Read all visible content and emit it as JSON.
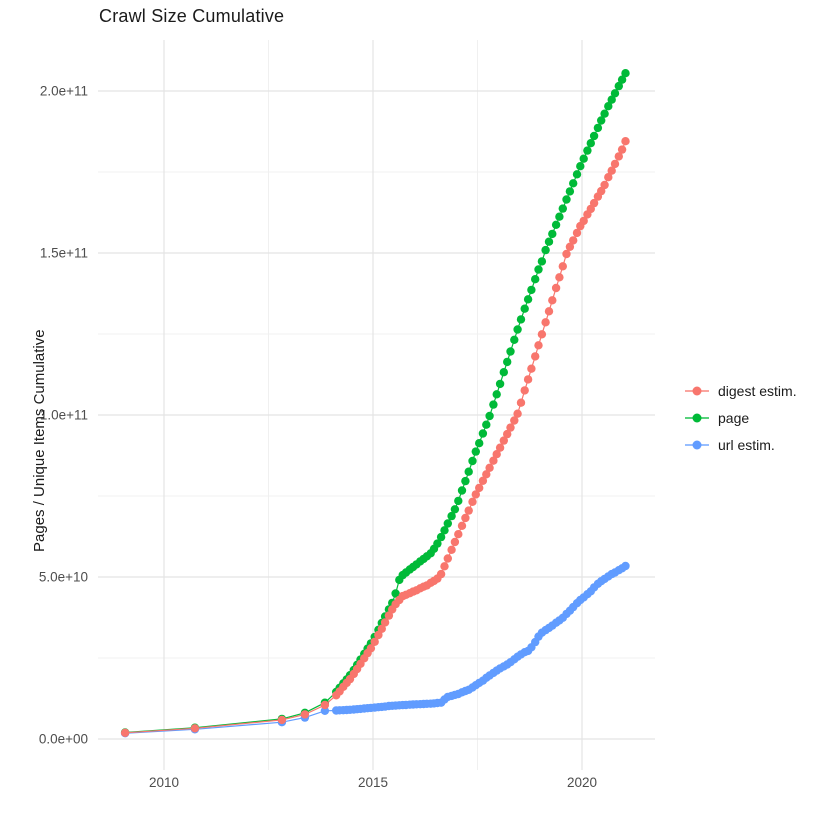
{
  "title": "Crawl Size Cumulative",
  "y_axis": {
    "label": "Pages / Unique Items Cumulative"
  },
  "legend": [
    {
      "label": "digest estim.",
      "color": "#F8766D"
    },
    {
      "label": "page",
      "color": "#00BA38"
    },
    {
      "label": "url estim.",
      "color": "#619CFF"
    }
  ],
  "chart_data": {
    "type": "scatter",
    "title": "Crawl Size Cumulative",
    "xlabel": "",
    "ylabel": "Pages / Unique Items Cumulative",
    "grid": true,
    "legend_position": "right",
    "xlim": [
      2008.4,
      2021.9
    ],
    "ylim_1e9": [
      -7,
      216
    ],
    "x_ticks": [
      2010,
      2015,
      2020
    ],
    "x_tick_labels": [
      "2010",
      "2015",
      "2020"
    ],
    "x_minor_ticks": [
      2012.5,
      2017.5
    ],
    "y_ticks_1e9": [
      0,
      50,
      100,
      150,
      200
    ],
    "y_tick_labels": [
      "0.0e+00",
      "5.0e+10",
      "1.0e+11",
      "1.5e+11",
      "2.0e+11"
    ],
    "y_minor_ticks_1e9": [
      25,
      75,
      125,
      175
    ],
    "units_note": "values_1e9 are item counts in billions (1e9)",
    "x": [
      2009.07,
      2010.74,
      2012.82,
      2013.37,
      2013.85,
      2014.12,
      2014.2,
      2014.29,
      2014.37,
      2014.45,
      2014.54,
      2014.62,
      2014.7,
      2014.79,
      2014.87,
      2014.95,
      2015.04,
      2015.13,
      2015.21,
      2015.29,
      2015.38,
      2015.46,
      2015.54,
      2015.63,
      2015.71,
      2015.79,
      2015.88,
      2015.96,
      2016.04,
      2016.13,
      2016.21,
      2016.29,
      2016.38,
      2016.46,
      2016.54,
      2016.63,
      2016.71,
      2016.79,
      2016.88,
      2016.96,
      2017.04,
      2017.13,
      2017.21,
      2017.29,
      2017.38,
      2017.46,
      2017.54,
      2017.63,
      2017.71,
      2017.79,
      2017.88,
      2017.96,
      2018.04,
      2018.13,
      2018.21,
      2018.29,
      2018.38,
      2018.46,
      2018.54,
      2018.63,
      2018.71,
      2018.79,
      2018.88,
      2018.96,
      2019.04,
      2019.13,
      2019.21,
      2019.29,
      2019.38,
      2019.46,
      2019.54,
      2019.63,
      2019.71,
      2019.79,
      2019.88,
      2019.96,
      2020.04,
      2020.13,
      2020.21,
      2020.29,
      2020.38,
      2020.46,
      2020.54,
      2020.63,
      2020.71,
      2020.79,
      2020.88,
      2020.96,
      2021.04
    ],
    "series": [
      {
        "name": "digest estim.",
        "color": "#F8766D",
        "values_1e9": [
          1.9,
          3.3,
          5.9,
          7.6,
          10.5,
          13.5,
          14.7,
          16.1,
          17.3,
          18.5,
          20.1,
          21.6,
          23.2,
          24.9,
          26.5,
          28.0,
          30.0,
          32.1,
          34.0,
          36.0,
          38.1,
          40.0,
          41.6,
          42.9,
          44.1,
          44.5,
          45.0,
          45.5,
          45.9,
          46.5,
          47.0,
          47.4,
          48.2,
          48.8,
          49.5,
          50.9,
          53.3,
          55.7,
          58.4,
          60.8,
          63.2,
          65.8,
          68.2,
          70.5,
          73.2,
          75.5,
          77.5,
          79.7,
          81.7,
          83.7,
          85.9,
          87.9,
          89.9,
          92.1,
          94.1,
          96.1,
          98.3,
          100.4,
          103.8,
          107.6,
          111.0,
          114.3,
          118.1,
          121.5,
          124.9,
          128.6,
          132.0,
          135.4,
          139.2,
          142.5,
          145.9,
          149.7,
          151.9,
          153.9,
          156.2,
          158.3,
          159.9,
          161.9,
          163.6,
          165.4,
          167.4,
          169.1,
          171.0,
          173.4,
          175.4,
          177.5,
          179.8,
          181.9,
          184.5
        ]
      },
      {
        "name": "page",
        "color": "#00BA38",
        "values_1e9": [
          2.0,
          3.5,
          6.2,
          8.1,
          11.2,
          14.5,
          15.8,
          17.2,
          18.4,
          19.7,
          21.3,
          22.9,
          24.5,
          26.3,
          27.9,
          29.5,
          31.5,
          33.7,
          35.8,
          37.8,
          40.0,
          42.0,
          44.9,
          49.1,
          50.6,
          51.4,
          52.3,
          53.1,
          53.9,
          54.8,
          55.6,
          56.4,
          57.3,
          58.7,
          60.3,
          62.3,
          64.4,
          66.5,
          68.8,
          70.9,
          73.5,
          76.7,
          79.6,
          82.5,
          85.8,
          88.7,
          91.3,
          94.3,
          97.0,
          99.7,
          103.2,
          106.4,
          109.6,
          113.2,
          116.4,
          119.6,
          123.2,
          126.4,
          129.5,
          132.8,
          135.7,
          138.6,
          141.9,
          144.9,
          147.4,
          150.9,
          153.5,
          155.9,
          158.7,
          161.2,
          163.7,
          166.5,
          169.0,
          171.5,
          174.3,
          176.8,
          179.1,
          181.6,
          183.9,
          186.1,
          188.6,
          190.9,
          193.0,
          195.3,
          197.3,
          199.3,
          201.5,
          203.5,
          205.5
        ]
      },
      {
        "name": "url estim.",
        "color": "#619CFF",
        "values_1e9": [
          1.8,
          3.0,
          5.2,
          6.6,
          8.7,
          8.8,
          8.85,
          8.9,
          8.95,
          9.0,
          9.1,
          9.2,
          9.3,
          9.4,
          9.5,
          9.6,
          9.7,
          9.8,
          9.9,
          10.0,
          10.2,
          10.25,
          10.3,
          10.4,
          10.45,
          10.5,
          10.6,
          10.65,
          10.7,
          10.75,
          10.8,
          10.85,
          10.9,
          11.0,
          11.1,
          11.2,
          12.2,
          13.0,
          13.3,
          13.6,
          13.9,
          14.4,
          14.8,
          15.2,
          15.9,
          16.6,
          17.3,
          18.0,
          18.9,
          19.6,
          20.4,
          21.1,
          21.8,
          22.4,
          23.0,
          23.7,
          24.6,
          25.4,
          26.1,
          26.8,
          27.2,
          28.3,
          29.9,
          31.6,
          32.8,
          33.6,
          34.3,
          35.0,
          35.9,
          36.6,
          37.4,
          38.6,
          39.6,
          40.7,
          41.9,
          42.9,
          43.7,
          44.7,
          45.6,
          46.8,
          47.9,
          48.7,
          49.4,
          50.2,
          50.9,
          51.4,
          52.1,
          52.7,
          53.4
        ]
      }
    ]
  }
}
